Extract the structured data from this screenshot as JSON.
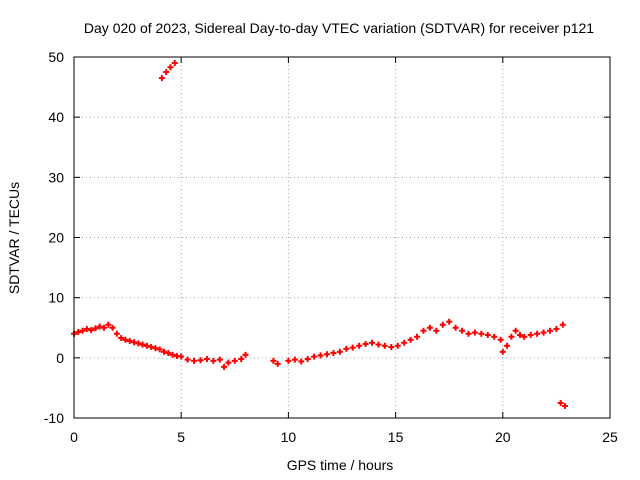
{
  "chart_data": {
    "type": "scatter",
    "title": "Day 020 of 2023, Sidereal Day-to-day VTEC variation (SDTVAR) for receiver p121",
    "xlabel": "GPS time / hours",
    "ylabel": "SDTVAR / TECUs",
    "xlim": [
      0,
      25
    ],
    "ylim": [
      -10,
      50
    ],
    "xticks": [
      0,
      5,
      10,
      15,
      20,
      25
    ],
    "yticks": [
      -10,
      0,
      10,
      20,
      30,
      40,
      50
    ],
    "grid": true,
    "marker_color": "#ff0000",
    "series": [
      {
        "name": "SDTVAR",
        "x": [
          0.0,
          0.2,
          0.4,
          0.6,
          0.8,
          1.0,
          1.2,
          1.4,
          1.6,
          1.8,
          2.0,
          2.2,
          2.4,
          2.6,
          2.8,
          3.0,
          3.2,
          3.4,
          3.6,
          3.8,
          4.0,
          4.2,
          4.4,
          4.6,
          4.8,
          5.0,
          5.3,
          5.6,
          5.9,
          6.2,
          6.5,
          6.8,
          7.0,
          7.2,
          7.5,
          7.8,
          8.0,
          4.1,
          4.3,
          4.5,
          4.7,
          9.3,
          9.5,
          10.0,
          10.3,
          10.6,
          10.9,
          11.2,
          11.5,
          11.8,
          12.1,
          12.4,
          12.7,
          13.0,
          13.3,
          13.6,
          13.9,
          14.2,
          14.5,
          14.8,
          15.1,
          15.4,
          15.7,
          16.0,
          16.3,
          16.6,
          16.9,
          17.2,
          17.5,
          17.8,
          18.1,
          18.4,
          18.7,
          19.0,
          19.3,
          19.6,
          19.9,
          20.0,
          20.2,
          20.4,
          20.6,
          20.8,
          21.0,
          21.3,
          21.6,
          21.9,
          22.2,
          22.5,
          22.8,
          22.7,
          22.9
        ],
        "y": [
          4.0,
          4.3,
          4.5,
          4.8,
          4.6,
          4.9,
          5.2,
          5.0,
          5.5,
          5.0,
          4.0,
          3.3,
          3.0,
          2.8,
          2.6,
          2.4,
          2.2,
          2.0,
          1.8,
          1.6,
          1.4,
          1.0,
          0.8,
          0.5,
          0.3,
          0.2,
          -0.3,
          -0.5,
          -0.4,
          -0.2,
          -0.5,
          -0.3,
          -1.5,
          -0.8,
          -0.5,
          -0.2,
          0.5,
          46.5,
          47.5,
          48.3,
          49.0,
          -0.5,
          -1.0,
          -0.5,
          -0.3,
          -0.6,
          -0.2,
          0.2,
          0.4,
          0.6,
          0.8,
          1.0,
          1.5,
          1.7,
          2.0,
          2.3,
          2.5,
          2.2,
          2.0,
          1.8,
          2.0,
          2.5,
          3.0,
          3.5,
          4.5,
          5.0,
          4.5,
          5.5,
          6.0,
          5.0,
          4.5,
          4.0,
          4.2,
          4.0,
          3.8,
          3.5,
          3.0,
          1.0,
          2.0,
          3.5,
          4.5,
          3.8,
          3.5,
          3.8,
          4.0,
          4.2,
          4.5,
          4.8,
          5.5,
          -7.5,
          -8.0
        ]
      }
    ]
  }
}
